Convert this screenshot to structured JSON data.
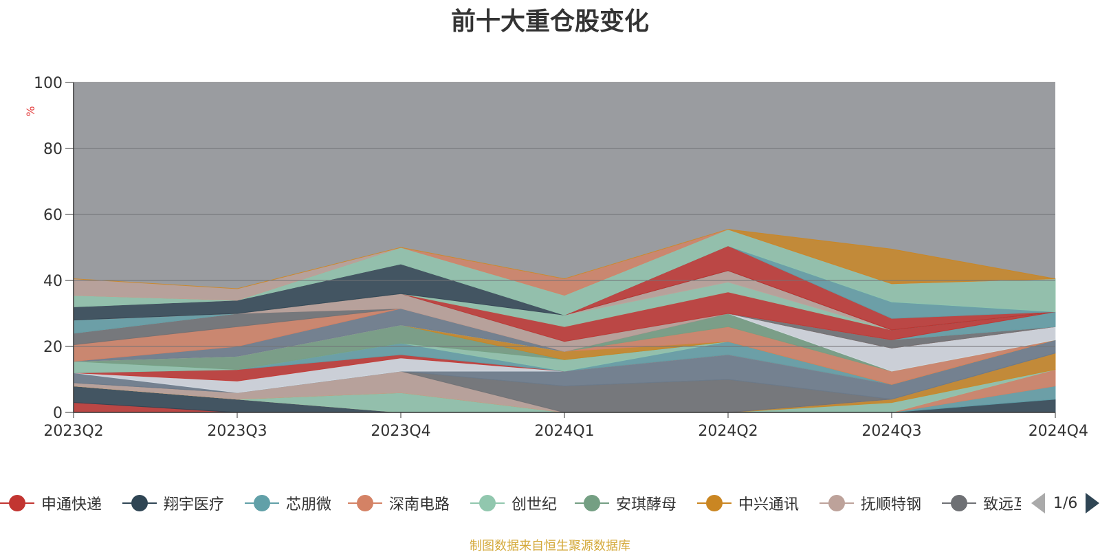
{
  "title": "前十大重仓股变化",
  "source_note": "制图数据来自恒生聚源数据库",
  "pager": {
    "text": "1/6"
  },
  "legend": [
    {
      "name": "申通快递",
      "color": "#c23531"
    },
    {
      "name": "翔宇医疗",
      "color": "#2f4554"
    },
    {
      "name": "芯朋微",
      "color": "#61a0a8"
    },
    {
      "name": "深南电路",
      "color": "#d48265"
    },
    {
      "name": "创世纪",
      "color": "#91c7ae"
    },
    {
      "name": "安琪酵母",
      "color": "#749f83"
    },
    {
      "name": "中兴通讯",
      "color": "#ca8622"
    },
    {
      "name": "抚顺特钢",
      "color": "#bda29a"
    },
    {
      "name": "致远互联",
      "color": "#6e7074"
    }
  ],
  "chart_data": {
    "type": "area",
    "stacked": true,
    "title": "前十大重仓股变化",
    "ylabel": "%",
    "ylim": [
      0,
      100
    ],
    "yticks": [
      0,
      20,
      40,
      60,
      80,
      100
    ],
    "grid": true,
    "legend_position": "bottom",
    "categories": [
      "2023Q2",
      "2023Q3",
      "2023Q4",
      "2024Q1",
      "2024Q2",
      "2024Q3",
      "2024Q4"
    ],
    "remainder_color": "#9a9ca0",
    "series": [
      {
        "name": "申通快递",
        "color": "#c23531",
        "values": [
          3,
          0,
          0,
          0,
          0,
          0,
          0
        ]
      },
      {
        "name": "翔宇医疗",
        "color": "#2f4554",
        "values": [
          5,
          4,
          0,
          0,
          0,
          0,
          4
        ]
      },
      {
        "name": "芯朋微",
        "color": "#61a0a8",
        "values": [
          0,
          0,
          0,
          0,
          0,
          0,
          4
        ]
      },
      {
        "name": "深南电路",
        "color": "#d48265",
        "values": [
          0,
          0,
          0,
          0,
          0,
          0,
          5
        ]
      },
      {
        "name": "创世纪",
        "color": "#91c7ae",
        "values": [
          0,
          0,
          6,
          0,
          0,
          3,
          0
        ]
      },
      {
        "name": "安琪酵母",
        "color": "#749f83",
        "values": [
          0,
          0,
          0,
          0,
          0,
          0,
          0
        ]
      },
      {
        "name": "中兴通讯",
        "color": "#ca8622",
        "values": [
          0,
          0,
          0,
          0,
          0,
          1,
          5
        ]
      },
      {
        "name": "抚顺特钢",
        "color": "#bda29a",
        "values": [
          1,
          2,
          6.5,
          0,
          0,
          0,
          0
        ]
      },
      {
        "name": "致远互联",
        "color": "#6e7074",
        "values": [
          0,
          0,
          0,
          8,
          10,
          0,
          0
        ]
      },
      {
        "name": "",
        "color": "#6b7b8c",
        "values": [
          3,
          0,
          0,
          4.5,
          7.5,
          4.5,
          4
        ]
      },
      {
        "name": "",
        "color": "#d5dbe3",
        "values": [
          0,
          3.5,
          4,
          0,
          0,
          0,
          0
        ]
      },
      {
        "name": "",
        "color": "#c23531",
        "values": [
          0,
          3.5,
          1,
          0,
          0,
          0,
          0
        ]
      },
      {
        "name": "",
        "color": "#61a0a8",
        "values": [
          0,
          0,
          3.5,
          0,
          4,
          0,
          0
        ]
      },
      {
        "name": "",
        "color": "#91c7ae",
        "values": [
          3.5,
          0,
          0,
          3.5,
          0,
          0,
          0
        ]
      },
      {
        "name": "",
        "color": "#749f83",
        "values": [
          0,
          4,
          5.5,
          0,
          0,
          0,
          0
        ]
      },
      {
        "name": "",
        "color": "#ca8622",
        "values": [
          0,
          0,
          0,
          2.5,
          0,
          0,
          0
        ]
      },
      {
        "name": "",
        "color": "#d48265",
        "values": [
          0,
          0,
          0,
          0,
          4.5,
          4,
          0
        ]
      },
      {
        "name": "",
        "color": "#749f83",
        "values": [
          0,
          0,
          0,
          0,
          4,
          0,
          0
        ]
      },
      {
        "name": "",
        "color": "#d5dbe3",
        "values": [
          0,
          0,
          0,
          0,
          0,
          7,
          4
        ]
      },
      {
        "name": "",
        "color": "#6b7b8c",
        "values": [
          0,
          3,
          5,
          0,
          0,
          0,
          0
        ]
      },
      {
        "name": "",
        "color": "#d48265",
        "values": [
          5,
          6,
          0,
          0,
          0,
          0,
          0
        ]
      },
      {
        "name": "",
        "color": "#6e7074",
        "values": [
          3.5,
          4,
          0,
          0,
          0,
          2.5,
          0
        ]
      },
      {
        "name": "",
        "color": "#bda29a",
        "values": [
          0,
          0,
          4.5,
          3,
          0,
          0,
          0
        ]
      },
      {
        "name": "",
        "color": "#61a0a8",
        "values": [
          4,
          0,
          0,
          0,
          0,
          0,
          4.5
        ]
      },
      {
        "name": "",
        "color": "#c23531",
        "values": [
          0,
          0,
          0,
          4.5,
          6.5,
          3,
          0
        ]
      },
      {
        "name": "",
        "color": "#91c7ae",
        "values": [
          0,
          0,
          0,
          3.5,
          3,
          0,
          0
        ]
      },
      {
        "name": "",
        "color": "#bda29a",
        "values": [
          0,
          0,
          0,
          0,
          3.5,
          0,
          0
        ]
      },
      {
        "name": "",
        "color": "#2f4554",
        "values": [
          4,
          4,
          9,
          0,
          0,
          0,
          0
        ]
      },
      {
        "name": "",
        "color": "#c23531",
        "values": [
          0,
          0,
          0,
          0,
          7.5,
          3.5,
          0
        ]
      },
      {
        "name": "",
        "color": "#61a0a8",
        "values": [
          0,
          0,
          0,
          0,
          0,
          5,
          0
        ]
      },
      {
        "name": "",
        "color": "#91c7ae",
        "values": [
          3.5,
          0,
          5,
          6,
          5,
          5.5,
          10
        ]
      },
      {
        "name": "",
        "color": "#d48265",
        "values": [
          0,
          0,
          0,
          5,
          0,
          0,
          0
        ]
      },
      {
        "name": "",
        "color": "#bda29a",
        "values": [
          5,
          3.5,
          0,
          0,
          0,
          0,
          0
        ]
      },
      {
        "name": "",
        "color": "#ca8622",
        "values": [
          0,
          0,
          0,
          0,
          0,
          10.5,
          0
        ]
      }
    ]
  }
}
